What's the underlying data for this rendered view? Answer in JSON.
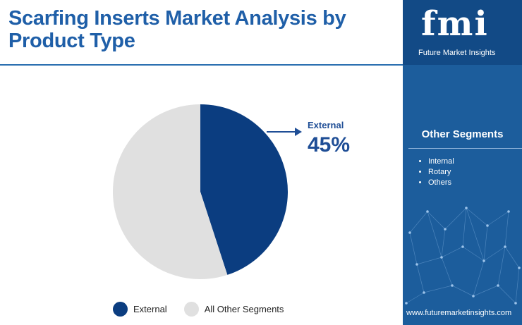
{
  "title": "Scarfing Inserts Market Analysis by Product Type",
  "callout": {
    "label": "External",
    "value": "45%"
  },
  "chart_data": {
    "type": "pie",
    "categories": [
      "External",
      "All Other Segments"
    ],
    "values": [
      45,
      55
    ],
    "colors": [
      "#0b3d80",
      "#e0e0e0"
    ],
    "legend_position": "bottom"
  },
  "legend": [
    {
      "label": "External",
      "color": "#0b3d80"
    },
    {
      "label": "All Other Segments",
      "color": "#e0e0e0"
    }
  ],
  "sidebar": {
    "logo_text": "fmi",
    "logo_subtitle": "Future Market Insights",
    "segments_title": "Other Segments",
    "segments": [
      "Internal",
      "Rotary",
      "Others"
    ],
    "website": "www.futuremarketinsights.com"
  }
}
